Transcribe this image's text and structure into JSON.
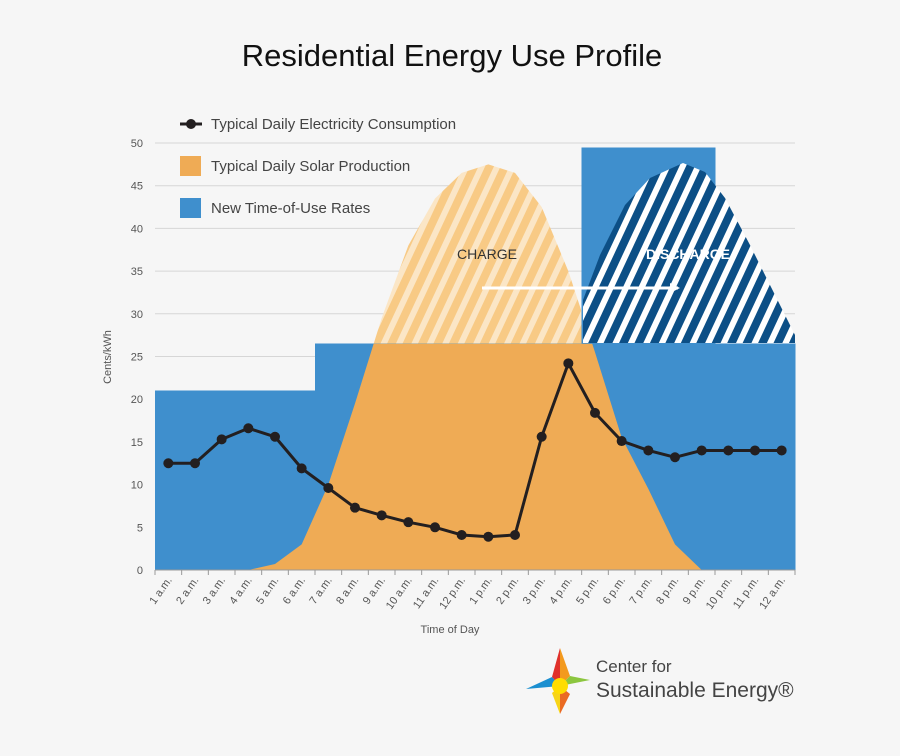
{
  "chart_data": {
    "type": "combo",
    "title": "Residential Energy Use Profile",
    "x_label": "Time of Day",
    "y_label": "Cents/kWh",
    "categories": [
      "1 a.m.",
      "2 a.m.",
      "3 a.m.",
      "4 a.m.",
      "5 a.m.",
      "6 a.m.",
      "7 a.m.",
      "8 a.m.",
      "9 a.m.",
      "10 a.m.",
      "11 a.m.",
      "12 p.m.",
      "1 p.m.",
      "2 p.m.",
      "3 p.m.",
      "4 p.m.",
      "5 p.m.",
      "6 p.m.",
      "7 p.m.",
      "8 p.m.",
      "9 p.m.",
      "10 p.m.",
      "11 p.m.",
      "12 a.m."
    ],
    "series": [
      {
        "name": "Typical Daily Electricity Consumption",
        "type": "line",
        "color": "#231f20",
        "values": [
          12.5,
          12.5,
          15.3,
          16.6,
          15.6,
          11.9,
          9.6,
          7.3,
          6.4,
          5.6,
          5.0,
          4.1,
          3.9,
          4.1,
          15.6,
          24.2,
          18.4,
          15.1,
          14.0,
          13.2,
          14.0,
          14.0,
          14.0,
          14.0
        ]
      },
      {
        "name": "Typical Daily Solar Production",
        "type": "area",
        "color": "#efab55",
        "values": [
          0,
          0,
          0,
          0,
          0.7,
          3,
          10,
          19.5,
          29.5,
          38,
          43.5,
          46.5,
          47.5,
          46.5,
          42.5,
          35,
          25.5,
          15.5,
          9.5,
          3,
          0,
          0,
          0,
          0
        ]
      },
      {
        "name": "New Time-of-Use Rates",
        "type": "step",
        "color": "#3f8fcd",
        "values": [
          21,
          21,
          21,
          21,
          21,
          21,
          26.5,
          26.5,
          26.5,
          26.5,
          26.5,
          26.5,
          26.5,
          26.5,
          26.5,
          26.5,
          49.5,
          49.5,
          49.5,
          49.5,
          49.5,
          26.5,
          26.5,
          26.5
        ]
      }
    ],
    "annotations": [
      "CHARGE",
      "DISCHARGE"
    ],
    "logo": [
      "Center for",
      "Sustainable Energy®"
    ],
    "ylim": [
      0,
      50
    ],
    "yticks": [
      0,
      5,
      10,
      15,
      20,
      25,
      30,
      35,
      40,
      45,
      50
    ],
    "grid": true,
    "legend": "top-left"
  }
}
